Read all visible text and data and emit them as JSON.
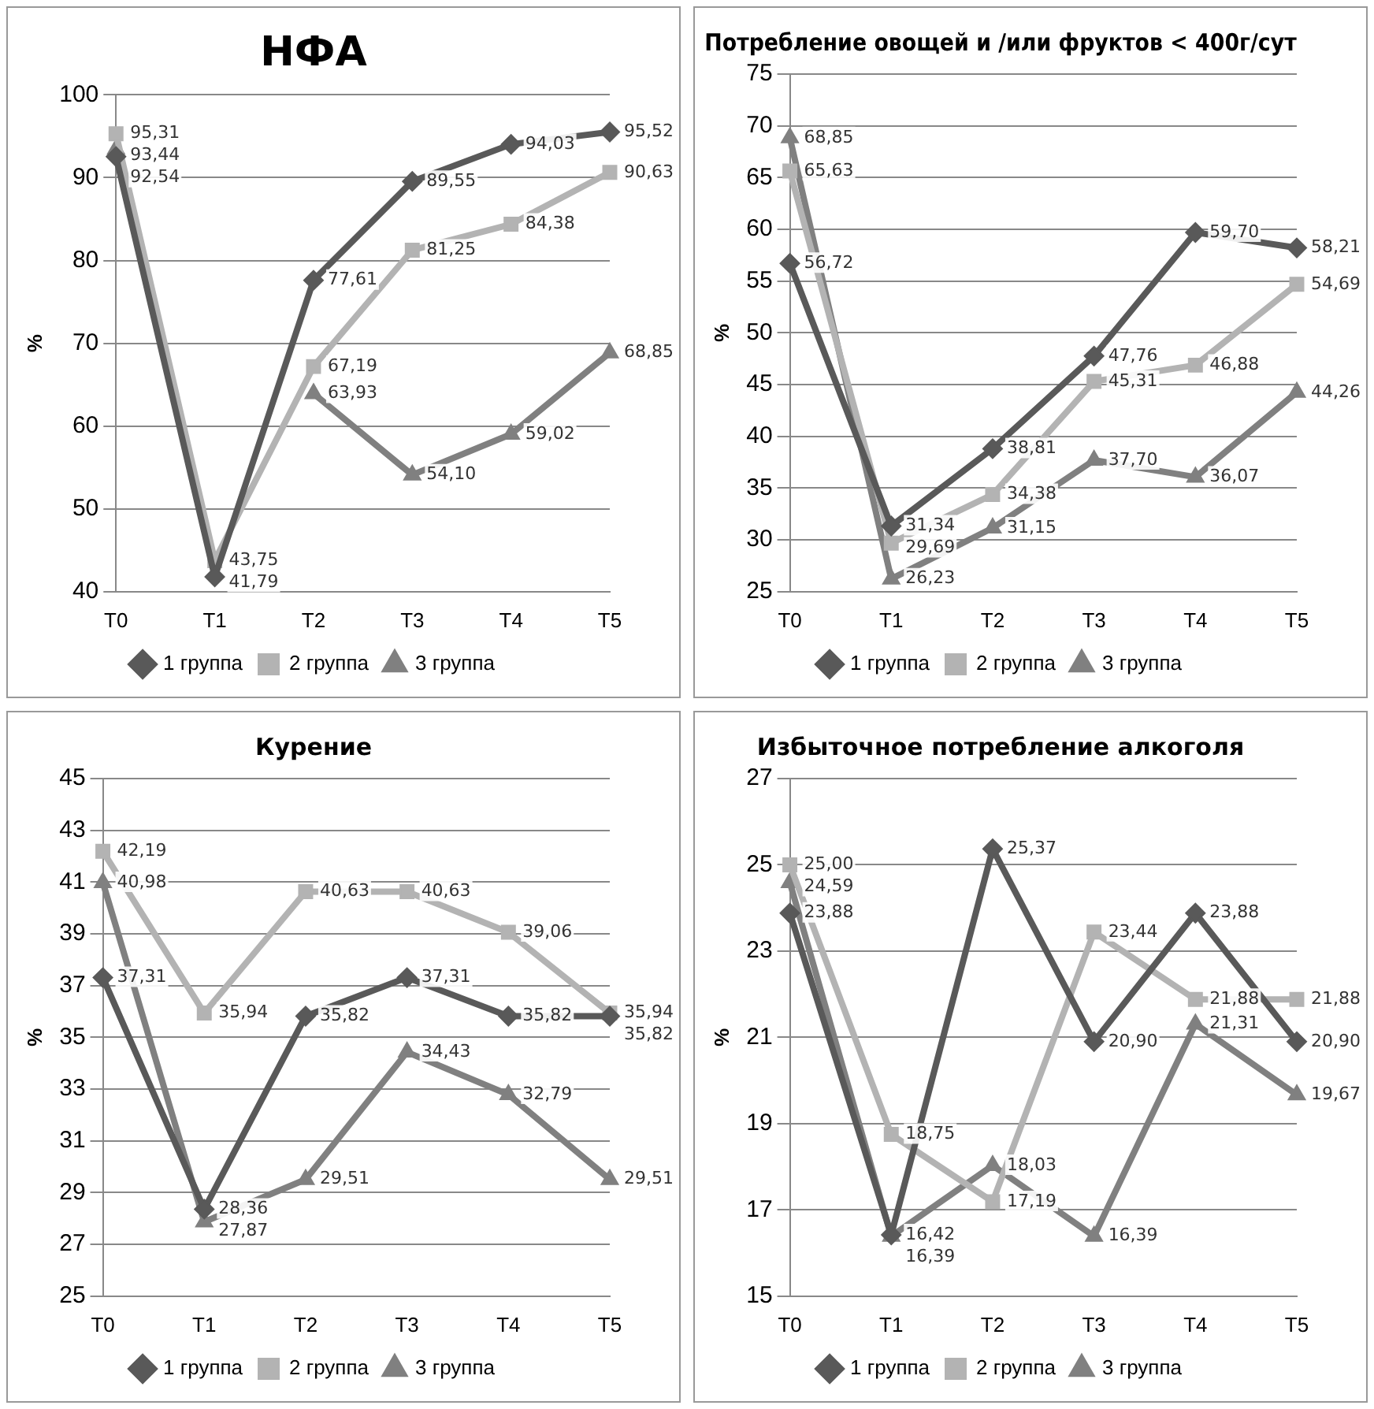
{
  "chart_data": [
    {
      "type": "line",
      "title": "НФА",
      "ylabel": "%",
      "categories": [
        "T0",
        "T1",
        "T2",
        "T3",
        "T4",
        "T5"
      ],
      "ylim": [
        40,
        100
      ],
      "yticks": [
        40,
        50,
        60,
        70,
        80,
        90,
        100
      ],
      "grid": "y",
      "legend": "bottom",
      "series": [
        {
          "name": "1 группа",
          "color": "#595959",
          "marker": "diamond",
          "values": [
            92.54,
            41.79,
            77.61,
            89.55,
            94.03,
            95.52
          ],
          "value_labels": [
            "92,54",
            "41,79",
            "77,61",
            "89,55",
            "94,03",
            "95,52"
          ]
        },
        {
          "name": "2 группа",
          "color": "#b3b3b3",
          "marker": "square",
          "values": [
            95.31,
            43.75,
            67.19,
            81.25,
            84.38,
            90.63
          ],
          "value_labels": [
            "95,31",
            "43,75",
            "67,19",
            "81,25",
            "84,38",
            "90,63"
          ]
        },
        {
          "name": "3 группа",
          "color": "#808080",
          "marker": "triangle",
          "values": [
            93.44,
            null,
            63.93,
            54.1,
            59.02,
            68.85
          ],
          "value_labels": [
            "93,44",
            null,
            "63,93",
            "54,10",
            "59,02",
            "68,85"
          ]
        }
      ]
    },
    {
      "type": "line",
      "title": "Потребление овощей и /или фруктов < 400г/сут",
      "ylabel": "%",
      "categories": [
        "T0",
        "T1",
        "T2",
        "T3",
        "T4",
        "T5"
      ],
      "ylim": [
        25,
        75
      ],
      "yticks": [
        25,
        30,
        35,
        40,
        45,
        50,
        55,
        60,
        65,
        70,
        75
      ],
      "grid": "y",
      "legend": "bottom",
      "series": [
        {
          "name": "1 группа",
          "color": "#595959",
          "marker": "diamond",
          "values": [
            56.72,
            31.34,
            38.81,
            47.76,
            59.7,
            58.21
          ],
          "value_labels": [
            "56,72",
            "31,34",
            "38,81",
            "47,76",
            "59,70",
            "58,21"
          ]
        },
        {
          "name": "2 группа",
          "color": "#b3b3b3",
          "marker": "square",
          "values": [
            65.63,
            29.69,
            34.38,
            45.31,
            46.88,
            54.69
          ],
          "value_labels": [
            "65,63",
            "29,69",
            "34,38",
            "45,31",
            "46,88",
            "54,69"
          ]
        },
        {
          "name": "3 группа",
          "color": "#808080",
          "marker": "triangle",
          "values": [
            68.85,
            26.23,
            31.15,
            37.7,
            36.07,
            44.26
          ],
          "value_labels": [
            "68,85",
            "26,23",
            "31,15",
            "37,70",
            "36,07",
            "44,26"
          ]
        }
      ]
    },
    {
      "type": "line",
      "title": "Курение",
      "ylabel": "%",
      "categories": [
        "T0",
        "T1",
        "T2",
        "T3",
        "T4",
        "T5"
      ],
      "ylim": [
        25,
        45
      ],
      "yticks": [
        25,
        27,
        29,
        31,
        33,
        35,
        37,
        39,
        41,
        43,
        45
      ],
      "grid": "y",
      "legend": "bottom",
      "series": [
        {
          "name": "1 группа",
          "color": "#595959",
          "marker": "diamond",
          "values": [
            37.31,
            28.36,
            35.82,
            37.31,
            35.82,
            35.82
          ],
          "value_labels": [
            "37,31",
            "28,36",
            "35,82",
            "37,31",
            "35,82",
            "35,82"
          ]
        },
        {
          "name": "2 группа",
          "color": "#b3b3b3",
          "marker": "square",
          "values": [
            42.19,
            35.94,
            40.63,
            40.63,
            39.06,
            35.94
          ],
          "value_labels": [
            "42,19",
            "35,94",
            "40,63",
            "40,63",
            "39,06",
            "35,94"
          ]
        },
        {
          "name": "3 группа",
          "color": "#808080",
          "marker": "triangle",
          "values": [
            40.98,
            27.87,
            29.51,
            34.43,
            32.79,
            29.51
          ],
          "value_labels": [
            "40,98",
            "27,87",
            "29,51",
            "34,43",
            "32,79",
            "29,51"
          ]
        }
      ]
    },
    {
      "type": "line",
      "title": "Избыточное потребление алкоголя",
      "ylabel": "%",
      "categories": [
        "T0",
        "T1",
        "T2",
        "T3",
        "T4",
        "T5"
      ],
      "ylim": [
        15,
        27
      ],
      "yticks": [
        15,
        17,
        19,
        21,
        23,
        25,
        27
      ],
      "grid": "y",
      "legend": "bottom",
      "series": [
        {
          "name": "1 группа",
          "color": "#595959",
          "marker": "diamond",
          "values": [
            23.88,
            16.42,
            25.37,
            20.9,
            23.88,
            20.9
          ],
          "value_labels": [
            "23,88",
            "16,42",
            "25,37",
            "20,90",
            "23,88",
            "20,90"
          ]
        },
        {
          "name": "2 группа",
          "color": "#b3b3b3",
          "marker": "square",
          "values": [
            25.0,
            18.75,
            17.19,
            23.44,
            21.88,
            21.88
          ],
          "value_labels": [
            "25,00",
            "18,75",
            "17,19",
            "23,44",
            "21,88",
            "21,88"
          ]
        },
        {
          "name": "3 группа",
          "color": "#808080",
          "marker": "triangle",
          "values": [
            24.59,
            16.39,
            18.03,
            16.39,
            21.31,
            19.67
          ],
          "value_labels": [
            "24,59",
            "16,39",
            "18,03",
            "16,39",
            "21,31",
            "19,67"
          ]
        }
      ]
    }
  ]
}
